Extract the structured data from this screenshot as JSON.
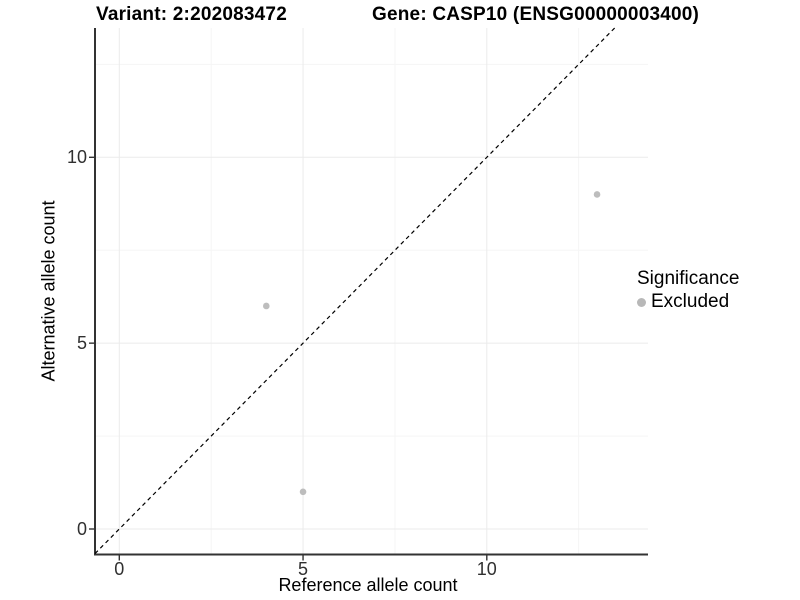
{
  "titles": {
    "variant": "Variant: 2:202083472",
    "gene": "Gene: CASP10 (ENSG00000003400)"
  },
  "axes": {
    "x_label": "Reference allele count",
    "y_label": "Alternative allele count",
    "x_ticks": [
      0,
      5,
      10
    ],
    "y_ticks": [
      0,
      5,
      10
    ],
    "x_minor_ticks": [
      2.5,
      7.5,
      12.5
    ],
    "y_minor_ticks": [
      2.5,
      7.5,
      12.5
    ]
  },
  "legend": {
    "title": "Significance",
    "items": [
      {
        "label": "Excluded",
        "color": "#b8b8b8"
      }
    ]
  },
  "colors": {
    "point": "#bdbdbd",
    "axis_line": "#333333",
    "major_grid": "#ebebeb",
    "minor_grid": "#f5f5f5",
    "identity_line": "#000000"
  },
  "chart_data": {
    "type": "scatter",
    "title": "Variant: 2:202083472 — Gene: CASP10 (ENSG00000003400)",
    "xlabel": "Reference allele count",
    "ylabel": "Alternative allele count",
    "xlim": [
      -0.7,
      14.4
    ],
    "ylim": [
      -0.7,
      13.5
    ],
    "grid": true,
    "legend_position": "right",
    "series": [
      {
        "name": "Excluded",
        "color": "#bdbdbd",
        "points": [
          {
            "x": 4,
            "y": 6
          },
          {
            "x": 5,
            "y": 1
          },
          {
            "x": 13,
            "y": 9
          }
        ]
      }
    ],
    "identity_line": {
      "style": "dashed",
      "from": [
        -0.66,
        -0.66
      ],
      "to": [
        13.48,
        13.48
      ]
    }
  }
}
